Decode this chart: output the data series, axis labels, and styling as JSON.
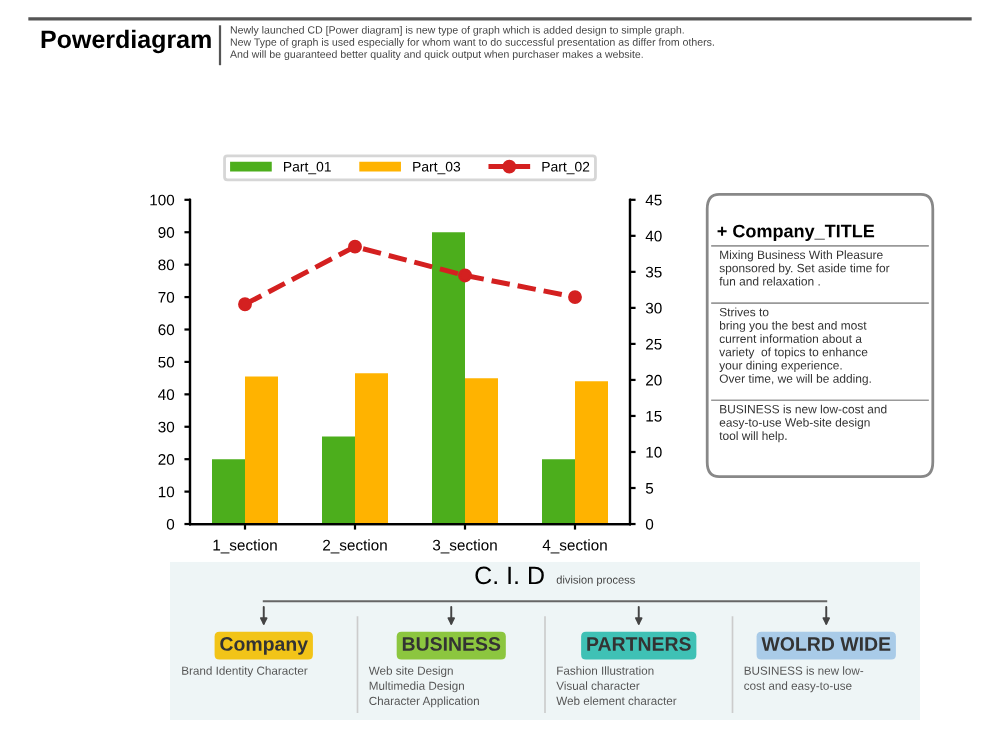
{
  "chart_data": [
    {
      "type": "bar",
      "title": "Powerdiagram",
      "subtitle": "Newly launched CD [Power diagram] is new type of graph which is added design to simple graph.\nNew Type of graph is used especially for whom want to do successful presentation as differ from others.\nAnd will be guaranteed better quality and quick output when purchaser makes a website.",
      "categories": [
        "1_section",
        "2_section",
        "3_section",
        "4_section"
      ],
      "series": [
        {
          "name": "Part_01",
          "type": "bar",
          "color": "#4cae1c",
          "values": [
            20,
            27,
            90,
            20
          ]
        },
        {
          "name": "Part_03",
          "type": "bar",
          "color": "#ffb300",
          "values": [
            45.5,
            46.5,
            45,
            44
          ]
        },
        {
          "name": "Part_02",
          "type": "line",
          "axis": "y2",
          "color": "#d42020",
          "values": [
            30.5,
            38.5,
            34.5,
            31.5
          ],
          "marker": "circle",
          "line_style": "dashed"
        }
      ],
      "ylim": [
        0,
        100
      ],
      "yticks": [
        0,
        10,
        20,
        30,
        40,
        50,
        60,
        70,
        80,
        90,
        100
      ],
      "y2lim": [
        0,
        45
      ],
      "y2ticks": [
        0,
        5,
        10,
        15,
        20,
        25,
        30,
        35,
        40,
        45
      ],
      "legend": "top",
      "grid": false
    },
    {
      "type": "other",
      "title": "+ Company_TITLE",
      "annotations": [
        "Mixing Business With Pleasure\nsponsored by. Set aside time for\nfun and relaxation .",
        "Strives to\nbring you the best and most\ncurrent information about a\nvariety  of topics to enhance\nyour dining experience.\nOver time, we will be adding.",
        "BUSINESS is new low-cost and\neasy-to-use Web-site design\ntool will help."
      ]
    },
    {
      "type": "other",
      "title": "C. I. D",
      "subtitle": "division process",
      "categories": [
        "Company",
        "BUSINESS",
        "PARTNERS",
        "WOLRD WIDE"
      ],
      "colors": [
        "#f2c418",
        "#8cc63f",
        "#3fc1b5",
        "#a9cbe8"
      ],
      "annotations": [
        "Brand Identity Character",
        "Web site Design\nMultimedia Design\nCharacter Application",
        "Fashion Illustration\nVisual character\nWeb element character",
        "BUSINESS is new low-\ncost and easy-to-use"
      ]
    }
  ]
}
